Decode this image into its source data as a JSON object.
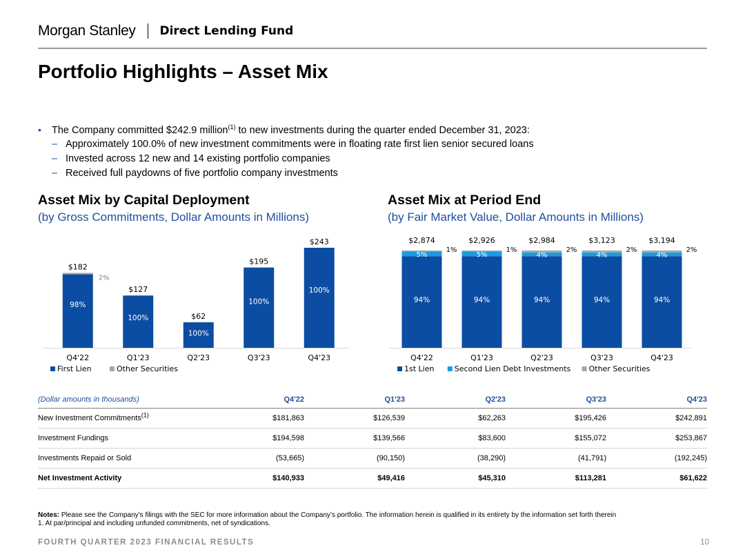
{
  "header": {
    "brand": "Morgan Stanley",
    "fund": "Direct Lending Fund"
  },
  "title": "Portfolio Highlights – Asset Mix",
  "bullets": {
    "main_pre": "The Company committed $242.9 million",
    "main_sup": "(1)",
    "main_post": " to new investments during the quarter ended December 31, 2023:",
    "subs": [
      "Approximately 100.0% of new investment commitments were in floating rate first lien senior secured loans",
      "Invested across 12 new and 14 existing portfolio companies",
      "Received full paydowns of five portfolio company investments"
    ]
  },
  "left_section": {
    "title": "Asset Mix by Capital Deployment",
    "subtitle": "(by Gross Commitments, Dollar Amounts in Millions)"
  },
  "right_section": {
    "title": "Asset Mix at Period End",
    "subtitle": "(by Fair Market Value, Dollar Amounts in Millions)"
  },
  "chart_data": [
    {
      "type": "bar",
      "stacked": true,
      "title": "Asset Mix by Capital Deployment",
      "categories": [
        "Q4'22",
        "Q1'23",
        "Q2'23",
        "Q3'23",
        "Q4'23"
      ],
      "totals": [
        182,
        127,
        62,
        195,
        243
      ],
      "total_labels": [
        "$182",
        "$127",
        "$62",
        "$195",
        "$243"
      ],
      "series": [
        {
          "name": "First Lien",
          "color": "#0b4da2",
          "pct": [
            98,
            100,
            100,
            100,
            100
          ],
          "labels": [
            "98%",
            "100%",
            "100%",
            "100%",
            "100%"
          ]
        },
        {
          "name": "Other Securities",
          "color": "#a6a6a6",
          "pct": [
            2,
            0,
            0,
            0,
            0
          ],
          "labels": [
            "2%",
            "",
            "",
            "",
            ""
          ]
        }
      ],
      "ylim": [
        0,
        260
      ]
    },
    {
      "type": "bar",
      "stacked": true,
      "title": "Asset Mix at Period End",
      "categories": [
        "Q4'22",
        "Q1'23",
        "Q2'23",
        "Q3'23",
        "Q4'23"
      ],
      "totals": [
        2874,
        2926,
        2984,
        3123,
        3194
      ],
      "total_labels": [
        "$2,874",
        "$2,926",
        "$2,984",
        "$3,123",
        "$3,194"
      ],
      "series": [
        {
          "name": "1st Lien",
          "color": "#0b4da2",
          "pct": [
            94,
            94,
            94,
            94,
            94
          ],
          "labels": [
            "94%",
            "94%",
            "94%",
            "94%",
            "94%"
          ]
        },
        {
          "name": "Second Lien Debt Investments",
          "color": "#1a9be0",
          "pct": [
            5,
            5,
            4,
            4,
            4
          ],
          "labels": [
            "5%",
            "5%",
            "4%",
            "4%",
            "4%"
          ]
        },
        {
          "name": "Other Securities",
          "color": "#a6a6a6",
          "pct": [
            1,
            1,
            2,
            2,
            2
          ],
          "labels": [
            "1%",
            "1%",
            "2%",
            "2%",
            "2%"
          ]
        }
      ]
    }
  ],
  "table": {
    "header": [
      "(Dollar amounts in thousands)",
      "Q4'22",
      "Q1'23",
      "Q2'23",
      "Q3'23",
      "Q4'23"
    ],
    "rows": [
      {
        "label": "New Investment Commitments",
        "sup": "(1)",
        "values": [
          "$181,863",
          "$126,539",
          "$62,263",
          "$195,426",
          "$242,891"
        ],
        "bold": false
      },
      {
        "label": "Investment Fundings",
        "sup": "",
        "values": [
          "$194,598",
          "$139,566",
          "$83,600",
          "$155,072",
          "$253,867"
        ],
        "bold": false
      },
      {
        "label": "Investments Repaid or Sold",
        "sup": "",
        "values": [
          "(53,665)",
          "(90,150)",
          "(38,290)",
          "(41,791)",
          "(192,245)"
        ],
        "bold": false
      },
      {
        "label": "Net Investment Activity",
        "sup": "",
        "values": [
          "$140,933",
          "$49,416",
          "$45,310",
          "$113,281",
          "$61,622"
        ],
        "bold": true
      }
    ]
  },
  "notes": {
    "label": "Notes:",
    "text": " Please see the Company’s filings with the SEC for more information about the Company’s portfolio. The information herein is qualified in its entirety by the information set forth therein",
    "footnote": "1. At par/principal and including unfunded commitments, net of syndications."
  },
  "footer": {
    "text": "FOURTH QUARTER 2023 FINANCIAL RESULTS",
    "page": "10"
  }
}
